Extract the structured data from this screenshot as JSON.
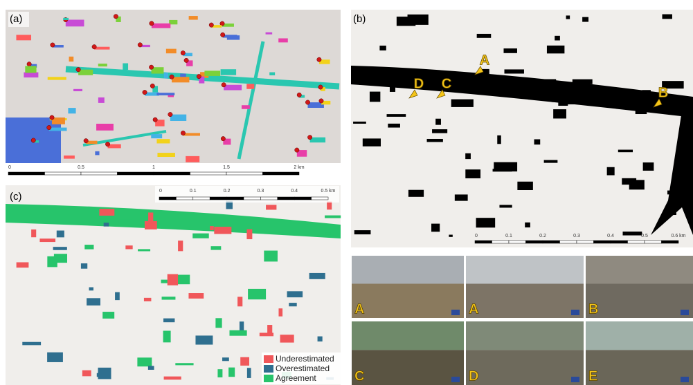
{
  "panels": [
    {
      "label": "(a)",
      "scale_bar": [
        "0",
        "0.5",
        "1",
        "1.5",
        "2 km"
      ]
    },
    {
      "label": "(b)",
      "annotations": [
        "A",
        "D",
        "C",
        "B"
      ],
      "scale_bar": [
        "0",
        "0.1",
        "0.2",
        "0.3",
        "0.4",
        "0.5",
        "0.6 km"
      ]
    },
    {
      "label": "(c)",
      "scale_bar": [
        "0",
        "0.1",
        "0.2",
        "0.3",
        "0.4",
        "0.5 km"
      ],
      "legend": [
        {
          "label": "Underestimated",
          "color": "#f0575a"
        },
        {
          "label": "Overestimated",
          "color": "#2f6f8f"
        },
        {
          "label": "Agreement",
          "color": "#27c46b"
        }
      ]
    }
  ],
  "photos": [
    {
      "label": "A"
    },
    {
      "label": "A"
    },
    {
      "label": "B"
    },
    {
      "label": "C"
    },
    {
      "label": "D"
    },
    {
      "label": "E"
    }
  ]
}
